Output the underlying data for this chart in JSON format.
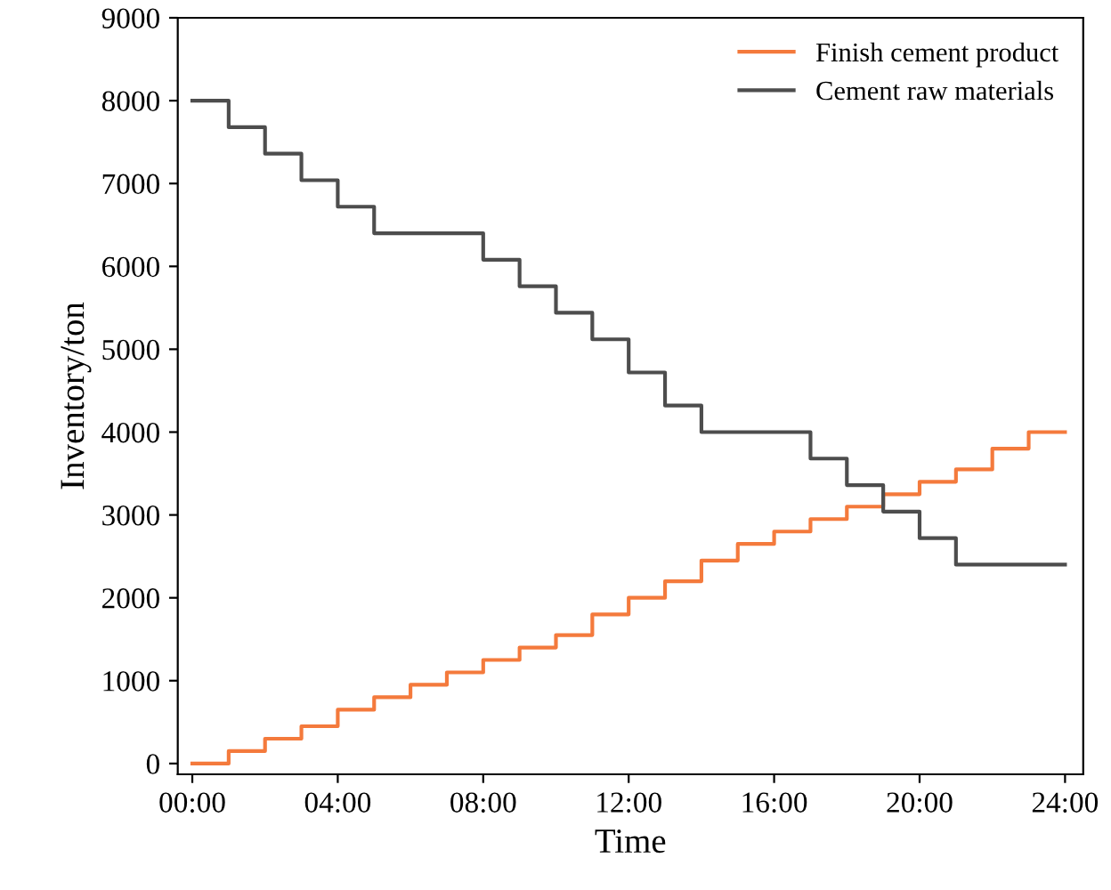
{
  "chart_data": {
    "type": "step",
    "xlabel": "Time",
    "ylabel": "Inventory/ton",
    "x": [
      0,
      1,
      2,
      3,
      4,
      5,
      6,
      7,
      8,
      9,
      10,
      11,
      12,
      13,
      14,
      15,
      16,
      17,
      18,
      19,
      20,
      21,
      22,
      23,
      24
    ],
    "series": [
      {
        "name": "Finish cement product",
        "color": "#f47a3c",
        "values": [
          0,
          150,
          300,
          450,
          650,
          800,
          950,
          1100,
          1250,
          1400,
          1550,
          1800,
          2000,
          2200,
          2450,
          2650,
          2800,
          2950,
          3100,
          3250,
          3400,
          3550,
          3800,
          4000,
          4000
        ]
      },
      {
        "name": "Cement raw materials",
        "color": "#4d4d4d",
        "values": [
          8000,
          7680,
          7360,
          7040,
          6720,
          6400,
          6400,
          6400,
          6080,
          5760,
          5440,
          5120,
          4720,
          4320,
          4000,
          4000,
          4000,
          3680,
          3360,
          3040,
          2720,
          2400,
          2400,
          2400,
          2400
        ]
      }
    ],
    "xlim": [
      -0.4,
      24.5
    ],
    "ylim": [
      -130,
      9000
    ],
    "xticks": [
      {
        "value": 0,
        "label": "00:00"
      },
      {
        "value": 4,
        "label": "04:00"
      },
      {
        "value": 8,
        "label": "08:00"
      },
      {
        "value": 12,
        "label": "12:00"
      },
      {
        "value": 16,
        "label": "16:00"
      },
      {
        "value": 20,
        "label": "20:00"
      },
      {
        "value": 24,
        "label": "24:00"
      }
    ],
    "yticks": [
      0,
      1000,
      2000,
      3000,
      4000,
      5000,
      6000,
      7000,
      8000,
      9000
    ],
    "legend": "top right",
    "grid": false
  }
}
